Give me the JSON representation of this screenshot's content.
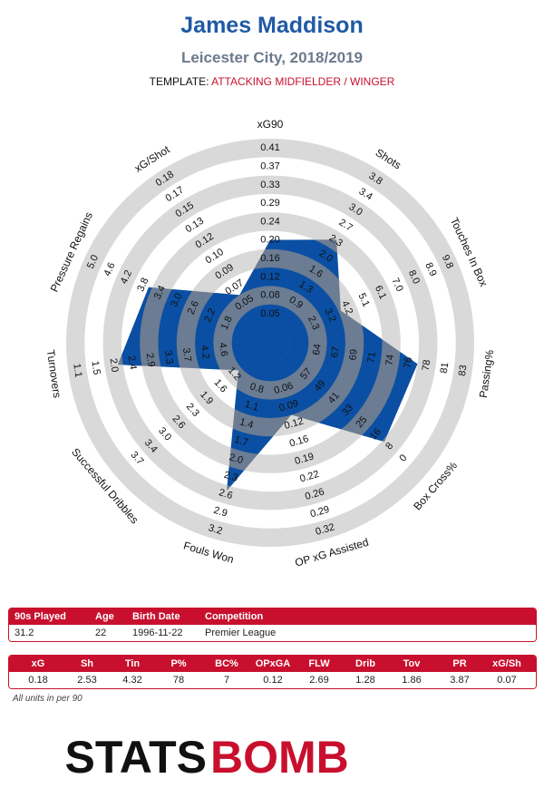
{
  "header": {
    "title": "James Maddison",
    "subtitle": "Leicester City, 2018/2019",
    "template_label": "TEMPLATE: ",
    "template_value": "ATTACKING MIDFIELDER / WINGER"
  },
  "colors": {
    "brand_blue": "#0a4fa3",
    "title_blue": "#1f5aa6",
    "ring_gray": "#d9d9d9",
    "accent_red": "#c8102e",
    "area_gray": "#6b7c93"
  },
  "chart_data": {
    "type": "radar",
    "axes": [
      {
        "name": "xG90",
        "ticks": [
          "0.05",
          "0.08",
          "0.12",
          "0.16",
          "0.20",
          "0.24",
          "0.29",
          "0.33",
          "0.37",
          "0.41"
        ],
        "value": 0.18
      },
      {
        "name": "Shots",
        "ticks": [
          "0.9",
          "1.3",
          "1.6",
          "2.0",
          "2.3",
          "2.7",
          "3.0",
          "3.4",
          "3.8"
        ],
        "value": 2.53
      },
      {
        "name": "Touches In Box",
        "ticks": [
          "2.3",
          "3.2",
          "4.2",
          "5.1",
          "6.1",
          "7.0",
          "8.0",
          "8.9",
          "9.8"
        ],
        "value": 4.32
      },
      {
        "name": "Passing%",
        "ticks": [
          "64",
          "67",
          "69",
          "71",
          "74",
          "76",
          "78",
          "81",
          "83"
        ],
        "value": 78
      },
      {
        "name": "Box Cross%",
        "ticks": [
          "57",
          "49",
          "41",
          "33",
          "25",
          "16",
          "8",
          "0"
        ],
        "value": 7
      },
      {
        "name": "OP xG Assisted",
        "ticks": [
          "0.06",
          "0.09",
          "0.12",
          "0.16",
          "0.19",
          "0.22",
          "0.26",
          "0.29",
          "0.32"
        ],
        "value": 0.12
      },
      {
        "name": "Fouls Won",
        "ticks": [
          "0.8",
          "1.1",
          "1.4",
          "1.7",
          "2.0",
          "2.3",
          "2.6",
          "2.9",
          "3.2"
        ],
        "value": 2.69
      },
      {
        "name": "Successful Dribbles",
        "ticks": [
          "1.2",
          "1.6",
          "1.9",
          "2.3",
          "2.6",
          "3.0",
          "3.4",
          "3.7"
        ],
        "value": 1.28
      },
      {
        "name": "Turnovers",
        "ticks": [
          "4.6",
          "4.2",
          "3.7",
          "3.3",
          "2.9",
          "2.4",
          "2.0",
          "1.5",
          "1.1"
        ],
        "value": 1.86
      },
      {
        "name": "Pressure Regains",
        "ticks": [
          "1.8",
          "2.2",
          "2.6",
          "3.0",
          "3.4",
          "3.8",
          "4.2",
          "4.6",
          "5.0"
        ],
        "value": 3.87
      },
      {
        "name": "xG/Shot",
        "ticks": [
          "0.05",
          "0.07",
          "0.09",
          "0.10",
          "0.12",
          "0.13",
          "0.15",
          "0.17",
          "0.18"
        ],
        "value": 0.07
      }
    ]
  },
  "info_table": {
    "headers": [
      "90s Played",
      "Age",
      "Birth Date",
      "Competition"
    ],
    "values": [
      "31.2",
      "22",
      "1996-11-22",
      "Premier League"
    ]
  },
  "stats_table": {
    "headers": [
      "xG",
      "Sh",
      "Tin",
      "P%",
      "BC%",
      "OPxGA",
      "FLW",
      "Drib",
      "Tov",
      "PR",
      "xG/Sh"
    ],
    "values": [
      "0.18",
      "2.53",
      "4.32",
      "78",
      "7",
      "0.12",
      "2.69",
      "1.28",
      "1.86",
      "3.87",
      "0.07"
    ]
  },
  "footer": {
    "note": "All units in per 90",
    "logo_text_left": "STATS",
    "logo_text_right": "BOMB"
  }
}
